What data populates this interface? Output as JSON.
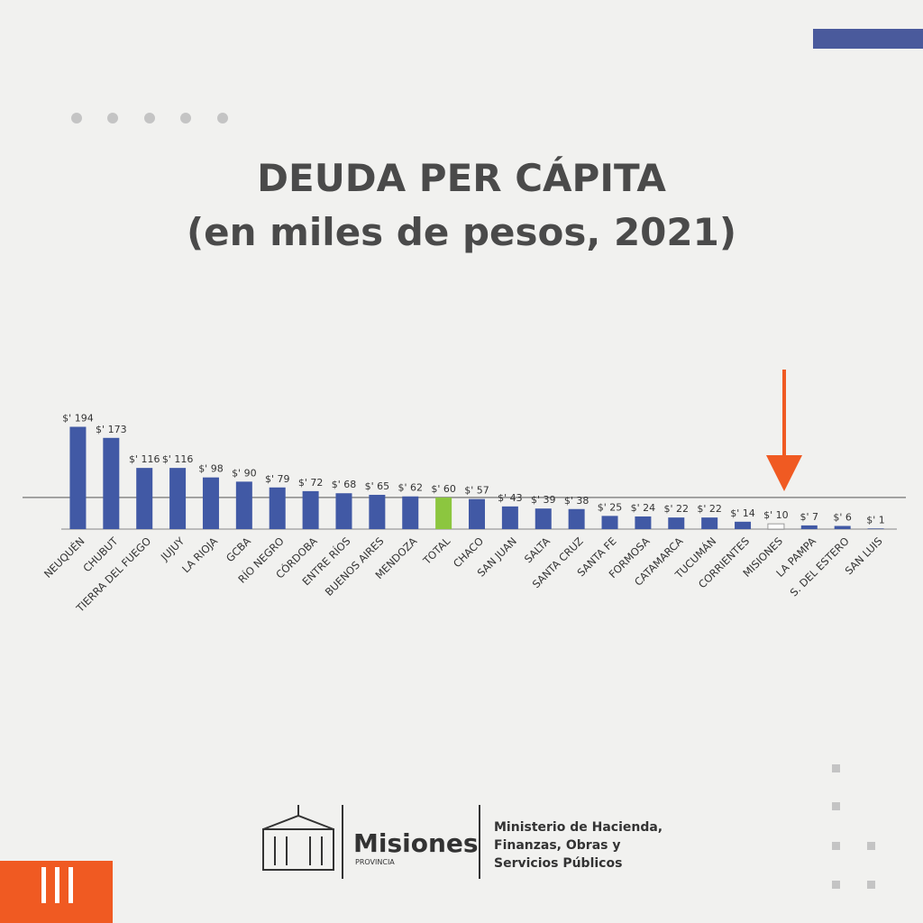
{
  "chart_data": {
    "type": "bar",
    "title": "DEUDA PER CÁPITA",
    "subtitle": "(en miles de pesos, 2021)",
    "categories": [
      "NEUQUÉN",
      "CHUBUT",
      "TIERRA DEL FUEGO",
      "JUJUY",
      "LA RIOJA",
      "GCBA",
      "RÍO NEGRO",
      "CÓRDOBA",
      "ENTRE RÍOS",
      "BUENOS AIRES",
      "MENDOZA",
      "TOTAL",
      "CHACO",
      "SAN JUAN",
      "SALTA",
      "SANTA CRUZ",
      "SANTA FE",
      "FORMOSA",
      "CATAMARCA",
      "TUCUMÁN",
      "CORRIENTES",
      "MISIONES",
      "LA PAMPA",
      "S. DEL ESTERO",
      "SAN LUIS"
    ],
    "values": [
      194,
      173,
      116,
      116,
      98,
      90,
      79,
      72,
      68,
      65,
      62,
      60,
      57,
      43,
      39,
      38,
      25,
      24,
      22,
      22,
      14,
      10,
      7,
      6,
      1
    ],
    "value_labels": [
      "$' 194",
      "$' 173",
      "$' 116",
      "$' 116",
      "$' 98",
      "$' 90",
      "$' 79",
      "$' 72",
      "$' 68",
      "$' 65",
      "$' 62",
      "$' 60",
      "$' 57",
      "$' 43",
      "$' 39",
      "$' 38",
      "$' 25",
      "$' 24",
      "$' 22",
      "$' 22",
      "$' 14",
      "$' 10",
      "$' 7",
      "$' 6",
      "$' 1"
    ],
    "colors": [
      "#4159a5",
      "#4159a5",
      "#4159a5",
      "#4159a5",
      "#4159a5",
      "#4159a5",
      "#4159a5",
      "#4159a5",
      "#4159a5",
      "#4159a5",
      "#4159a5",
      "#8cc63f",
      "#4159a5",
      "#4159a5",
      "#4159a5",
      "#4159a5",
      "#4159a5",
      "#4159a5",
      "#4159a5",
      "#4159a5",
      "#4159a5",
      "#ffffff",
      "#4159a5",
      "#4159a5",
      "#4159a5"
    ],
    "ylim": [
      0,
      200
    ]
  },
  "brand": {
    "name": "Misiones",
    "sub": "PROVINCIA",
    "ministry": [
      "Ministerio de Hacienda,",
      "Finanzas, Obras y",
      "Servicios Públicos"
    ]
  }
}
